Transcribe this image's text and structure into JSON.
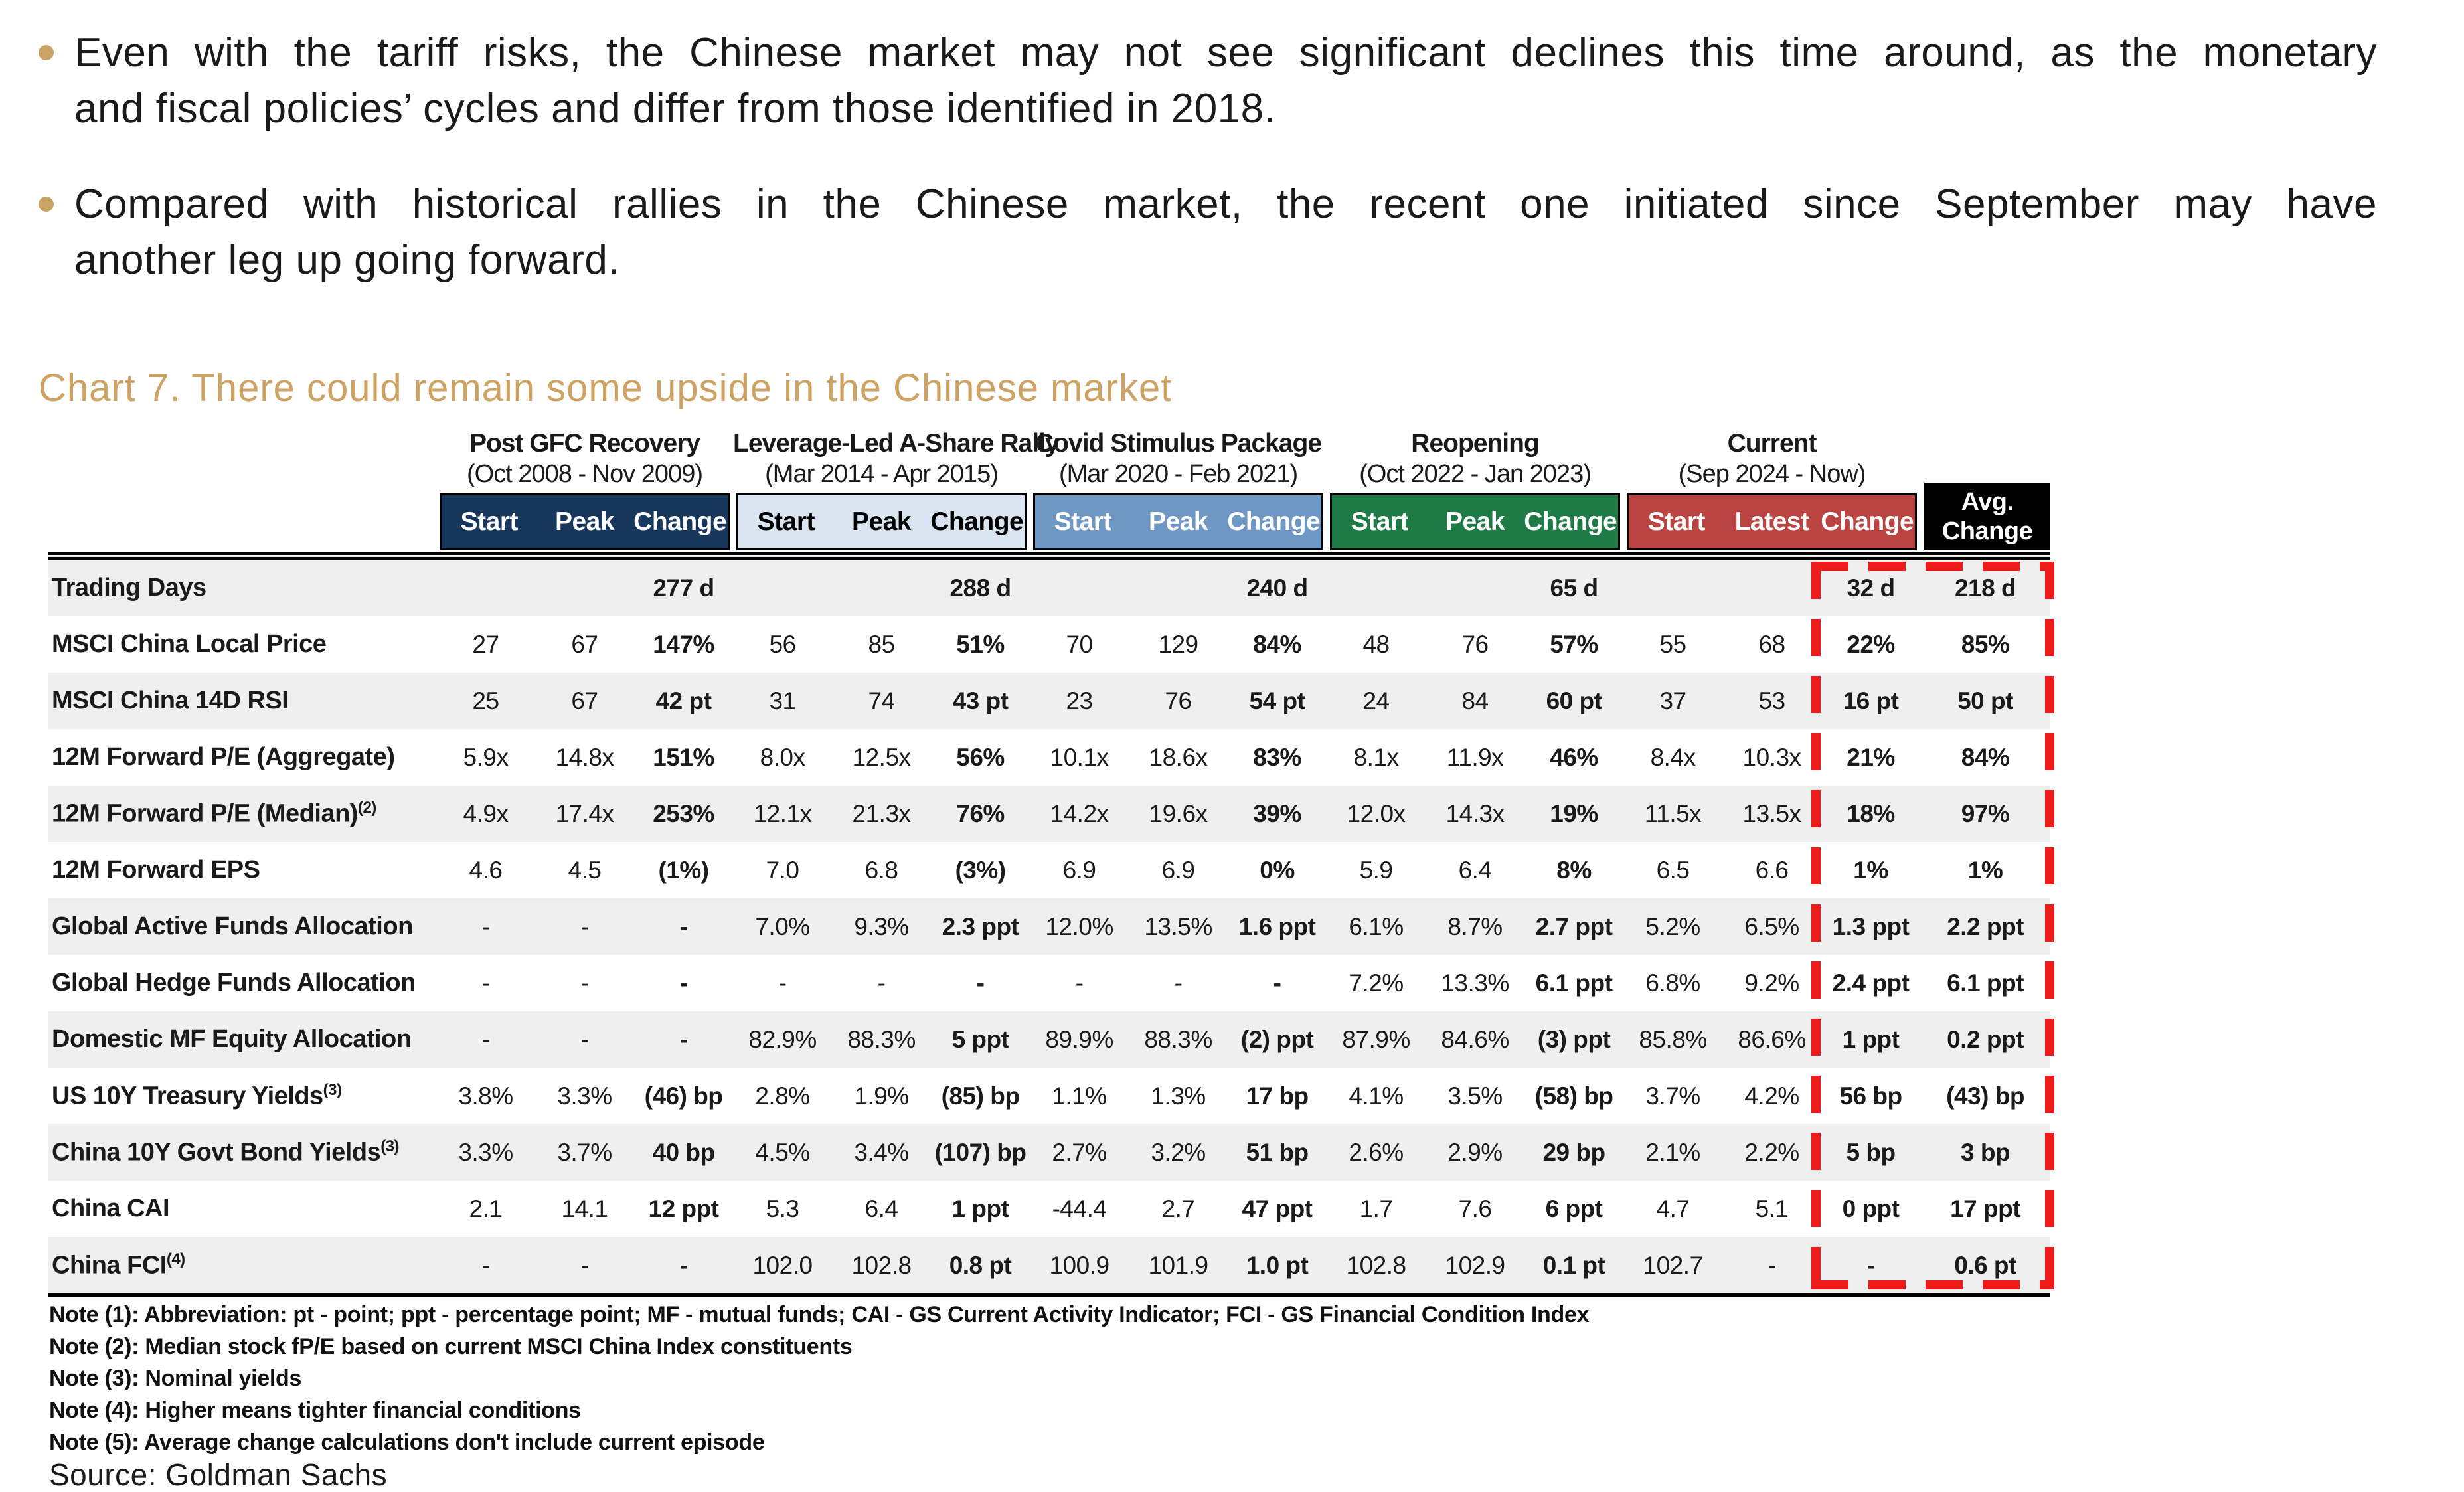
{
  "colors": {
    "accent_gold": "#CDA263",
    "bullet_dot": "#C9A465",
    "stripe_gray": "#EFEFEF",
    "dash_red": "#EE1B1B"
  },
  "bullets": [
    {
      "lines": [
        "Even with the tariff risks, the Chinese market may not see significant declines this time around, as the monetary",
        "and fiscal policies’ cycles and differ from those identified in 2018."
      ]
    },
    {
      "lines": [
        "Compared with historical rallies in the Chinese market, the recent one initiated since September may have",
        "another leg up going forward."
      ]
    }
  ],
  "chart": {
    "title": "Chart 7. There could remain some upside in the Chinese market"
  },
  "table": {
    "avg_line1": "Avg.",
    "avg_line2": "Change",
    "groups": [
      {
        "name": "Post GFC Recovery",
        "dates": "(Oct 2008 - Nov 2009)",
        "cols": [
          "Start",
          "Peak",
          "Change"
        ],
        "band_style": "background:#17375D;color:#FFFFFF"
      },
      {
        "name": "Leverage-Led A-Share Rally",
        "dates": "(Mar 2014 - Apr 2015)",
        "cols": [
          "Start",
          "Peak",
          "Change"
        ],
        "band_style": "background:#D9E6F2;color:#000000"
      },
      {
        "name": "Covid Stimulus Package",
        "dates": "(Mar 2020 - Feb 2021)",
        "cols": [
          "Start",
          "Peak",
          "Change"
        ],
        "band_style": "background:#6F97C4;color:#FFFFFF"
      },
      {
        "name": "Reopening",
        "dates": "(Oct 2022 - Jan 2023)",
        "cols": [
          "Start",
          "Peak",
          "Change"
        ],
        "band_style": "background:#1E7B46;color:#FFFFFF"
      },
      {
        "name": "Current",
        "dates": "(Sep 2024 - Now)",
        "cols": [
          "Start",
          "Latest",
          "Change"
        ],
        "band_style": "background:#B94441;color:#FFFFFF"
      }
    ],
    "rows": [
      {
        "label": "Trading Days",
        "sup": "",
        "values": [
          "",
          "",
          "277 d",
          "",
          "",
          "288 d",
          "",
          "",
          "240 d",
          "",
          "",
          "65 d",
          "",
          "",
          "32 d",
          "218 d"
        ]
      },
      {
        "label": "MSCI China Local Price",
        "sup": "",
        "values": [
          "27",
          "67",
          "147%",
          "56",
          "85",
          "51%",
          "70",
          "129",
          "84%",
          "48",
          "76",
          "57%",
          "55",
          "68",
          "22%",
          "85%"
        ]
      },
      {
        "label": "MSCI China 14D RSI",
        "sup": "",
        "values": [
          "25",
          "67",
          "42 pt",
          "31",
          "74",
          "43 pt",
          "23",
          "76",
          "54 pt",
          "24",
          "84",
          "60 pt",
          "37",
          "53",
          "16 pt",
          "50 pt"
        ]
      },
      {
        "label": "12M Forward P/E (Aggregate)",
        "sup": "",
        "values": [
          "5.9x",
          "14.8x",
          "151%",
          "8.0x",
          "12.5x",
          "56%",
          "10.1x",
          "18.6x",
          "83%",
          "8.1x",
          "11.9x",
          "46%",
          "8.4x",
          "10.3x",
          "21%",
          "84%"
        ]
      },
      {
        "label": "12M Forward P/E (Median)",
        "sup": "(2)",
        "values": [
          "4.9x",
          "17.4x",
          "253%",
          "12.1x",
          "21.3x",
          "76%",
          "14.2x",
          "19.6x",
          "39%",
          "12.0x",
          "14.3x",
          "19%",
          "11.5x",
          "13.5x",
          "18%",
          "97%"
        ]
      },
      {
        "label": "12M Forward EPS",
        "sup": "",
        "values": [
          "4.6",
          "4.5",
          "(1%)",
          "7.0",
          "6.8",
          "(3%)",
          "6.9",
          "6.9",
          "0%",
          "5.9",
          "6.4",
          "8%",
          "6.5",
          "6.6",
          "1%",
          "1%"
        ]
      },
      {
        "label": "Global Active Funds Allocation",
        "sup": "",
        "values": [
          "-",
          "-",
          "-",
          "7.0%",
          "9.3%",
          "2.3 ppt",
          "12.0%",
          "13.5%",
          "1.6 ppt",
          "6.1%",
          "8.7%",
          "2.7 ppt",
          "5.2%",
          "6.5%",
          "1.3 ppt",
          "2.2 ppt"
        ]
      },
      {
        "label": "Global Hedge Funds Allocation",
        "sup": "",
        "values": [
          "-",
          "-",
          "-",
          "-",
          "-",
          "-",
          "-",
          "-",
          "-",
          "7.2%",
          "13.3%",
          "6.1 ppt",
          "6.8%",
          "9.2%",
          "2.4 ppt",
          "6.1 ppt"
        ]
      },
      {
        "label": "Domestic MF Equity Allocation",
        "sup": "",
        "values": [
          "-",
          "-",
          "-",
          "82.9%",
          "88.3%",
          "5 ppt",
          "89.9%",
          "88.3%",
          "(2) ppt",
          "87.9%",
          "84.6%",
          "(3) ppt",
          "85.8%",
          "86.6%",
          "1 ppt",
          "0.2 ppt"
        ]
      },
      {
        "label": "US 10Y Treasury Yields",
        "sup": "(3)",
        "values": [
          "3.8%",
          "3.3%",
          "(46) bp",
          "2.8%",
          "1.9%",
          "(85) bp",
          "1.1%",
          "1.3%",
          "17 bp",
          "4.1%",
          "3.5%",
          "(58) bp",
          "3.7%",
          "4.2%",
          "56 bp",
          "(43) bp"
        ]
      },
      {
        "label": "China 10Y Govt Bond Yields",
        "sup": "(3)",
        "values": [
          "3.3%",
          "3.7%",
          "40 bp",
          "4.5%",
          "3.4%",
          "(107) bp",
          "2.7%",
          "3.2%",
          "51 bp",
          "2.6%",
          "2.9%",
          "29 bp",
          "2.1%",
          "2.2%",
          "5 bp",
          "3 bp"
        ]
      },
      {
        "label": "China CAI",
        "sup": "",
        "values": [
          "2.1",
          "14.1",
          "12 ppt",
          "5.3",
          "6.4",
          "1 ppt",
          "-44.4",
          "2.7",
          "47 ppt",
          "1.7",
          "7.6",
          "6 ppt",
          "4.7",
          "5.1",
          "0 ppt",
          "17 ppt"
        ]
      },
      {
        "label": "China FCI",
        "sup": "(4)",
        "values": [
          "-",
          "-",
          "-",
          "102.0",
          "102.8",
          "0.8 pt",
          "100.9",
          "101.9",
          "1.0 pt",
          "102.8",
          "102.9",
          "0.1 pt",
          "102.7",
          "-",
          "-",
          "0.6 pt"
        ]
      }
    ]
  },
  "notes": [
    "Note (1): Abbreviation: pt - point; ppt - percentage point; MF - mutual funds; CAI - GS Current Activity Indicator; FCI - GS Financial Condition Index",
    "Note (2): Median stock fP/E based on current MSCI China Index constituents",
    "Note (3): Nominal yields",
    "Note (4): Higher means tighter financial conditions",
    "Note (5): Average change calculations don't include current episode"
  ],
  "source": "Source: Goldman Sachs"
}
